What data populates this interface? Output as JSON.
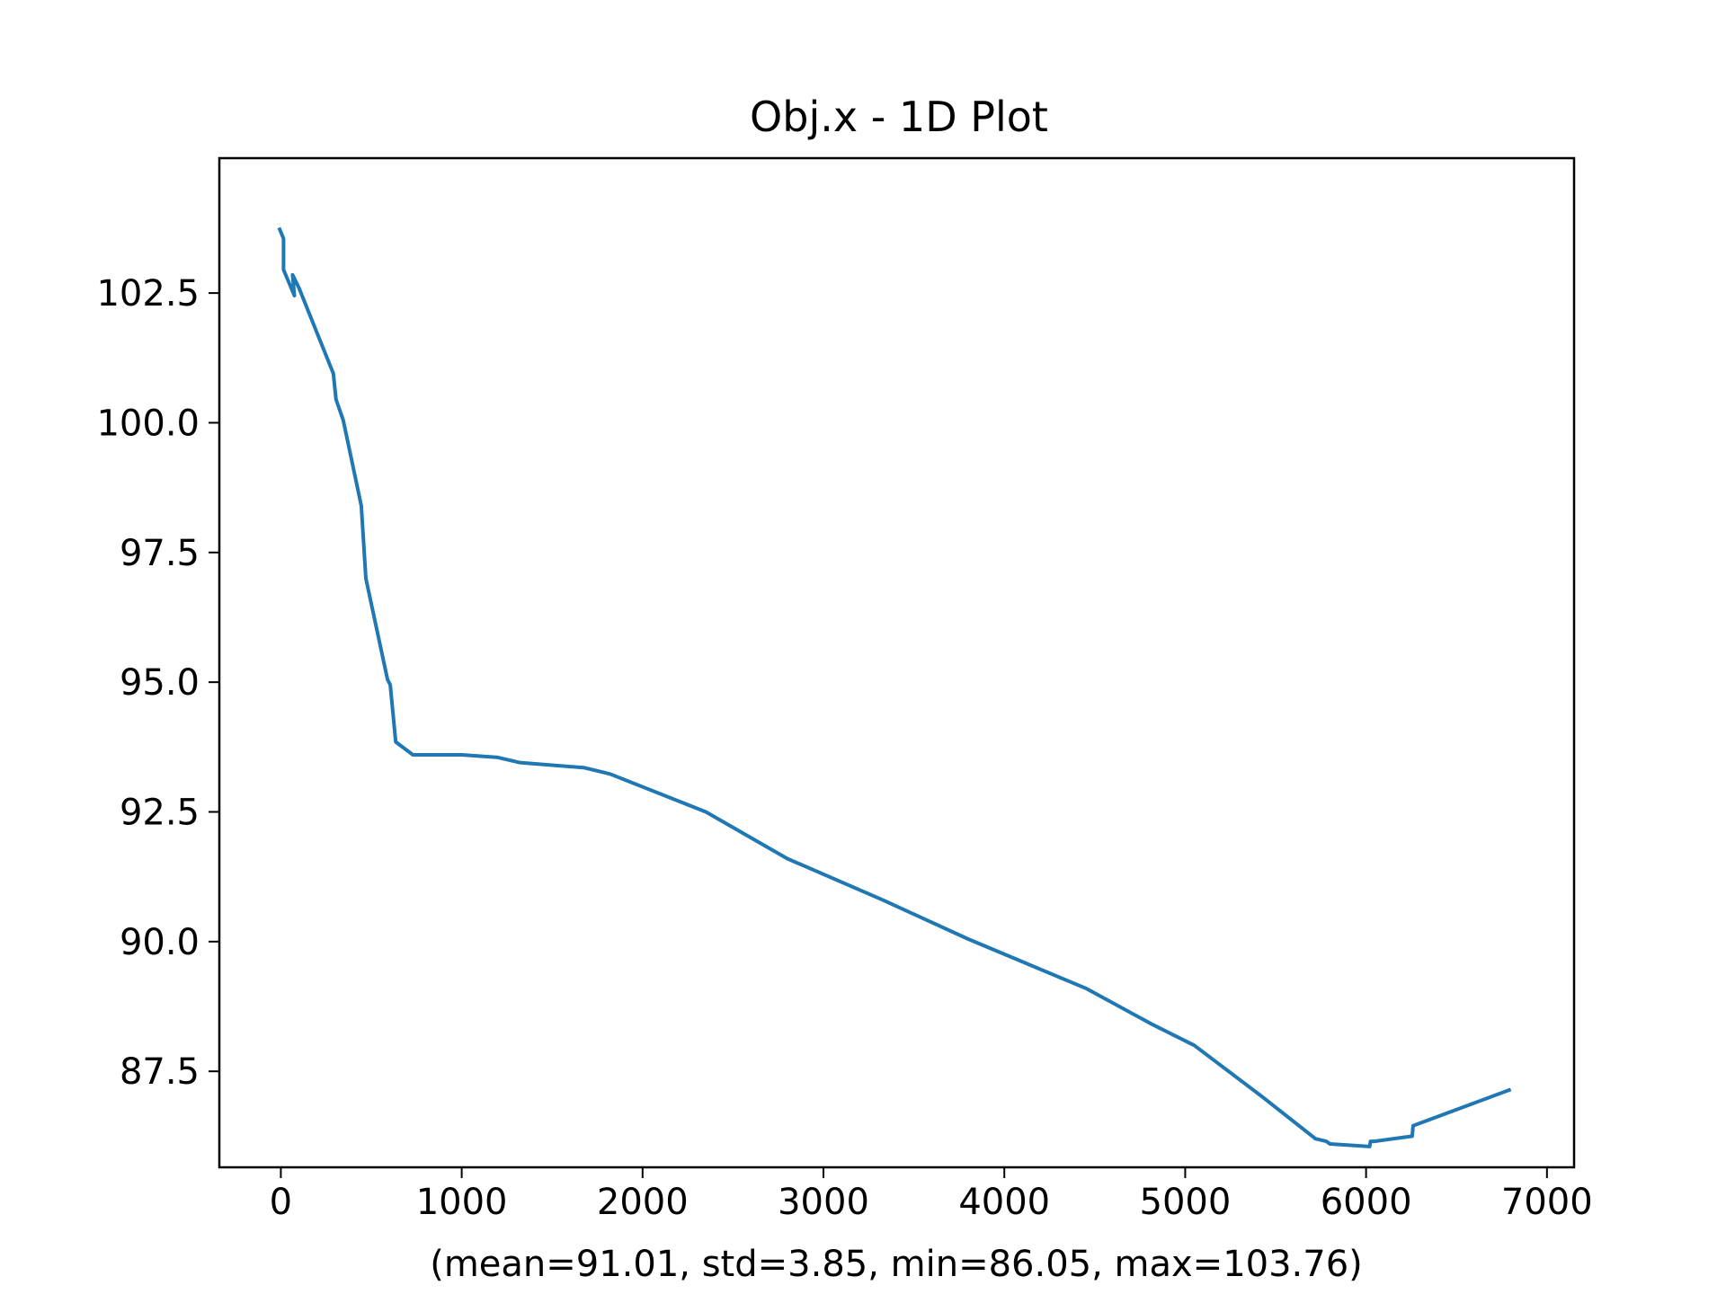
{
  "chart_data": {
    "type": "line",
    "title": "Obj.x - 1D Plot",
    "xlabel": "(mean=91.01, std=3.85, min=86.05, max=103.76)",
    "ylabel": "",
    "xlim": [
      -340,
      7150
    ],
    "ylim": [
      85.65,
      105.1
    ],
    "x_ticks": [
      0,
      1000,
      2000,
      3000,
      4000,
      5000,
      6000,
      7000
    ],
    "x_tick_labels": [
      "0",
      "1000",
      "2000",
      "3000",
      "4000",
      "5000",
      "6000",
      "7000"
    ],
    "y_ticks": [
      87.5,
      90.0,
      92.5,
      95.0,
      97.5,
      100.0,
      102.5
    ],
    "y_tick_labels": [
      "87.5",
      "90.0",
      "92.5",
      "95.0",
      "97.5",
      "100.0",
      "102.5"
    ],
    "grid": false,
    "series": [
      {
        "color": "#1f77b4",
        "x": [
          -10,
          15,
          15,
          75,
          65,
          100,
          290,
          305,
          345,
          445,
          470,
          590,
          605,
          635,
          730,
          1000,
          1200,
          1320,
          1680,
          1820,
          2350,
          2800,
          3330,
          3800,
          4450,
          4820,
          5050,
          5430,
          5720,
          5780,
          5800,
          6020,
          6025,
          6045,
          6255,
          6260,
          6800
        ],
        "y": [
          103.76,
          103.55,
          102.95,
          102.45,
          102.85,
          102.6,
          100.95,
          100.45,
          100.05,
          98.4,
          97.0,
          95.05,
          94.95,
          93.85,
          93.6,
          93.6,
          93.55,
          93.45,
          93.35,
          93.23,
          92.5,
          91.6,
          90.8,
          90.05,
          89.1,
          88.4,
          88.0,
          87.0,
          86.2,
          86.15,
          86.1,
          86.05,
          86.15,
          86.15,
          86.25,
          86.45,
          87.15
        ]
      }
    ]
  }
}
